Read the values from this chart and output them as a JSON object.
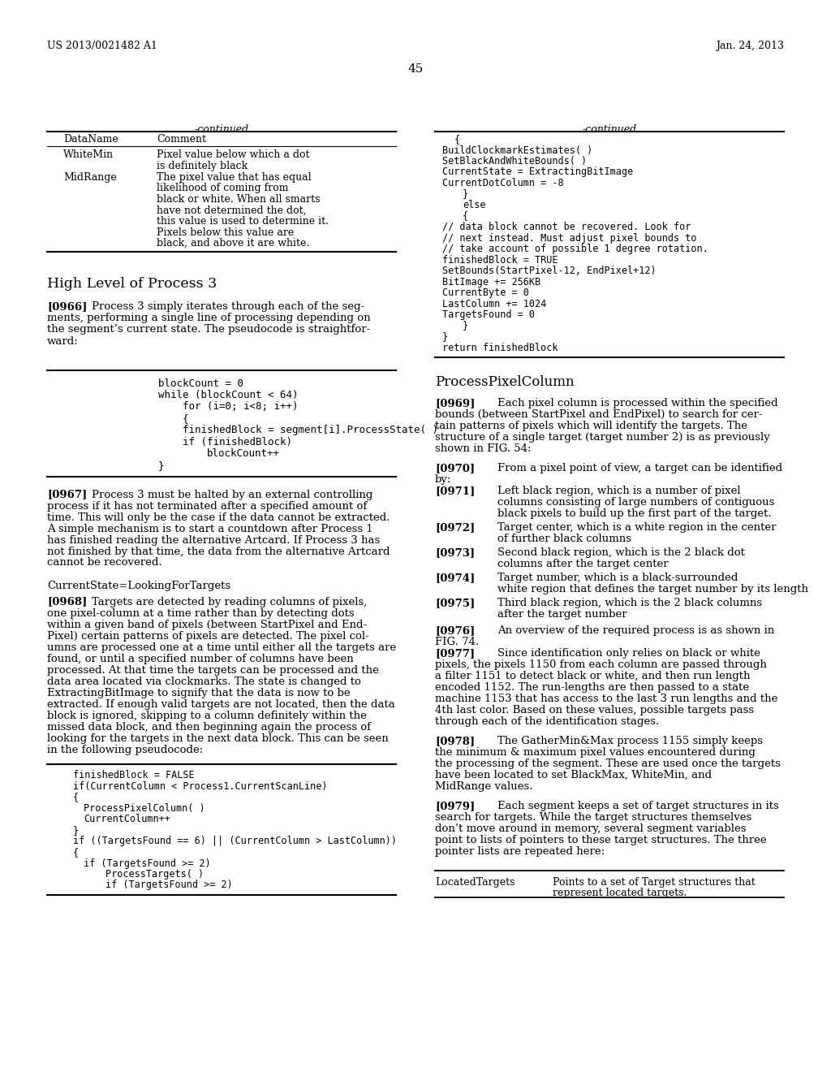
{
  "bg_color": "#ffffff",
  "header_left": "US 2013/0021482 A1",
  "header_right": "Jan. 24, 2013",
  "page_number": "45"
}
